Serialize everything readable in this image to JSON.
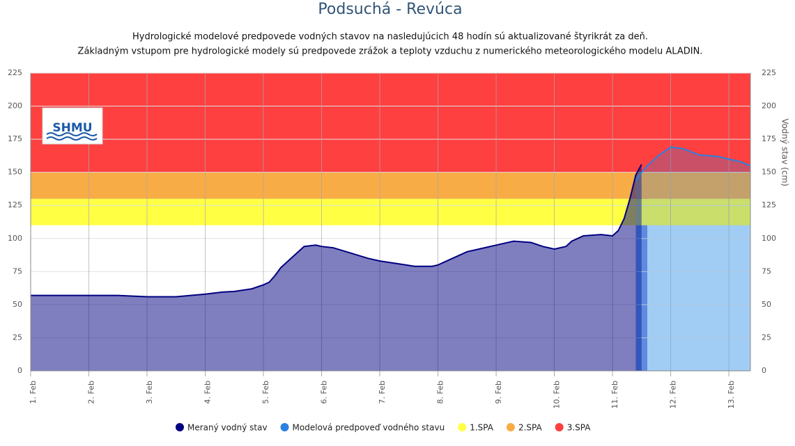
{
  "chart_data": {
    "type": "line",
    "title": "Podsuchá - Revúca",
    "subtitle": [
      "Hydrologické modelové predpovede vodných stavov na nasledujúcich 48 hodín sú aktualizované štyrikrát za deň.",
      "Základným vstupom pre hydrologické modely sú predpovede zrážok a teploty vzduchu z numerického meteorologického modelu ALADIN."
    ],
    "logo": "SHMU",
    "y_label": "Vodný stav (cm)",
    "xlim": [
      1,
      13.37
    ],
    "xticks": [
      {
        "value": 1,
        "label": "1. Feb"
      },
      {
        "value": 2,
        "label": "2. Feb"
      },
      {
        "value": 3,
        "label": "3. Feb"
      },
      {
        "value": 4,
        "label": "4. Feb"
      },
      {
        "value": 5,
        "label": "5. Feb"
      },
      {
        "value": 6,
        "label": "6. Feb"
      },
      {
        "value": 7,
        "label": "7. Feb"
      },
      {
        "value": 8,
        "label": "8. Feb"
      },
      {
        "value": 9,
        "label": "9. Feb"
      },
      {
        "value": 10,
        "label": "10. Feb"
      },
      {
        "value": 11,
        "label": "11. Feb"
      },
      {
        "value": 12,
        "label": "12. Feb"
      },
      {
        "value": 13,
        "label": "13. Feb"
      }
    ],
    "ylim": [
      0,
      225
    ],
    "yticks": [
      0,
      25,
      50,
      75,
      100,
      125,
      150,
      175,
      200,
      225
    ],
    "grid": true,
    "x_bands": [
      {
        "from": 11.4,
        "to": 11.6,
        "color": "#6f8fe0"
      },
      {
        "from": 11.6,
        "to": 13.37,
        "color": "#c8e7fb"
      }
    ],
    "bands": [
      {
        "name": "1.SPA",
        "color": "#ffff44",
        "from": 110,
        "to": 130
      },
      {
        "name": "2.SPA",
        "color": "#f7ac45",
        "from": 130,
        "to": 150
      },
      {
        "name": "3.SPA",
        "color": "#ff4040",
        "from": 150,
        "to": 225
      }
    ],
    "series": [
      {
        "name": "Meraný vodný stav",
        "color": "#000080",
        "x": [
          1,
          1.5,
          2,
          2.5,
          3,
          3.5,
          4,
          4.3,
          4.5,
          4.8,
          5,
          5.1,
          5.2,
          5.3,
          5.5,
          5.7,
          5.9,
          6,
          6.2,
          6.5,
          6.8,
          7,
          7.3,
          7.6,
          7.9,
          8,
          8.2,
          8.5,
          8.8,
          9,
          9.3,
          9.6,
          9.8,
          10,
          10.2,
          10.3,
          10.5,
          10.8,
          11,
          11.1,
          11.2,
          11.3,
          11.4,
          11.5
        ],
        "values": [
          57,
          57,
          57,
          57,
          56,
          56,
          58,
          59.5,
          60,
          62,
          65,
          67,
          72,
          78,
          86,
          94,
          95,
          94,
          93,
          89,
          85,
          83,
          81,
          79,
          79,
          80,
          84,
          90,
          93,
          95,
          98,
          97,
          94,
          92,
          94,
          98,
          102,
          103,
          102,
          106,
          115,
          130,
          148,
          156
        ]
      },
      {
        "name": "Modelová predpoveď vodného stavu",
        "color": "#2b80e0",
        "x": [
          11.4,
          11.5,
          11.6,
          11.8,
          12,
          12.2,
          12.5,
          12.8,
          13,
          13.2,
          13.37
        ],
        "values": [
          144,
          150,
          155,
          163,
          169,
          168,
          163,
          162,
          160,
          158,
          155
        ]
      }
    ]
  }
}
